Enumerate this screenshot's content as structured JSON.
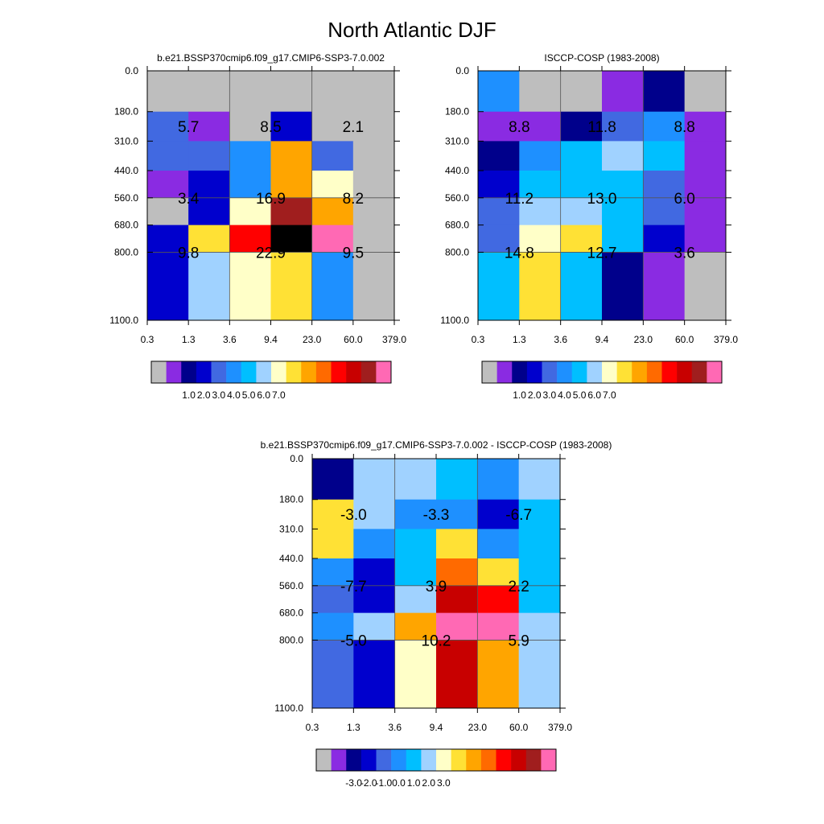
{
  "title": "North Atlantic DJF",
  "y_tick_labels": [
    "0.0",
    "180.0",
    "310.0",
    "440.0",
    "560.0",
    "680.0",
    "800.0",
    "1100.0"
  ],
  "x_tick_labels": [
    "0.3",
    "1.3",
    "3.6",
    "9.4",
    "23.0",
    "60.0",
    "379.0"
  ],
  "chart_data": [
    {
      "type": "heatmap",
      "title": "b.e21.BSSP370cmip6.f09_g17.CMIP6-SSP3-7.0.002",
      "x_bins": [
        "0.3",
        "1.3",
        "3.6",
        "9.4",
        "23.0",
        "60.0",
        "379.0"
      ],
      "y_bins": [
        "0.0",
        "180.0",
        "310.0",
        "440.0",
        "560.0",
        "680.0",
        "800.0",
        "1100.0"
      ],
      "cells": [
        [
          0,
          0,
          0,
          0,
          0,
          0
        ],
        [
          4,
          1,
          0,
          3,
          0,
          0
        ],
        [
          4,
          4,
          5,
          10,
          4,
          0
        ],
        [
          1,
          3,
          5,
          10,
          8,
          0
        ],
        [
          0,
          3,
          8,
          14,
          10,
          0
        ],
        [
          3,
          9,
          12,
          16,
          15,
          0
        ],
        [
          3,
          7,
          8,
          9,
          5,
          0
        ]
      ],
      "block_labels": [
        {
          "row": 0,
          "col": 0,
          "text": "5.7"
        },
        {
          "row": 0,
          "col": 1,
          "text": "8.5"
        },
        {
          "row": 0,
          "col": 2,
          "text": "2.1"
        },
        {
          "row": 1,
          "col": 0,
          "text": "3.4"
        },
        {
          "row": 1,
          "col": 1,
          "text": "16.9"
        },
        {
          "row": 1,
          "col": 2,
          "text": "8.2"
        },
        {
          "row": 2,
          "col": 0,
          "text": "9.8"
        },
        {
          "row": 2,
          "col": 1,
          "text": "22.9"
        },
        {
          "row": 2,
          "col": 2,
          "text": "9.5"
        }
      ],
      "colorbar": {
        "colors": [
          "#bebebe",
          "#8a2be2",
          "#00008b",
          "#0000cd",
          "#4169e1",
          "#1e90ff",
          "#00bfff",
          "#a0d2ff",
          "#ffffc8",
          "#ffe135",
          "#ffa500",
          "#ff6a00",
          "#ff0000",
          "#c80000",
          "#a01e1e",
          "#ff69b4"
        ],
        "labels": [
          "1.0",
          "2.0",
          "3.0",
          "4.0",
          "5.0",
          "6.0",
          "7.0"
        ],
        "label_positions": [
          2,
          3,
          4,
          5,
          6,
          7,
          8
        ]
      }
    },
    {
      "type": "heatmap",
      "title": "ISCCP-COSP (1983-2008)",
      "x_bins": [
        "0.3",
        "1.3",
        "3.6",
        "9.4",
        "23.0",
        "60.0",
        "379.0"
      ],
      "y_bins": [
        "0.0",
        "180.0",
        "310.0",
        "440.0",
        "560.0",
        "680.0",
        "800.0",
        "1100.0"
      ],
      "cells": [
        [
          5,
          0,
          0,
          1,
          2,
          0
        ],
        [
          1,
          1,
          2,
          4,
          5,
          1
        ],
        [
          2,
          5,
          6,
          7,
          6,
          1
        ],
        [
          3,
          6,
          6,
          6,
          4,
          1
        ],
        [
          4,
          7,
          7,
          6,
          4,
          1
        ],
        [
          4,
          8,
          9,
          6,
          3,
          1
        ],
        [
          6,
          9,
          6,
          2,
          1,
          0
        ]
      ],
      "block_labels": [
        {
          "row": 0,
          "col": 0,
          "text": "8.8"
        },
        {
          "row": 0,
          "col": 1,
          "text": "11.8"
        },
        {
          "row": 0,
          "col": 2,
          "text": "8.8"
        },
        {
          "row": 1,
          "col": 0,
          "text": "11.2"
        },
        {
          "row": 1,
          "col": 1,
          "text": "13.0"
        },
        {
          "row": 1,
          "col": 2,
          "text": "6.0"
        },
        {
          "row": 2,
          "col": 0,
          "text": "14.8"
        },
        {
          "row": 2,
          "col": 1,
          "text": "12.7"
        },
        {
          "row": 2,
          "col": 2,
          "text": "3.6"
        }
      ],
      "colorbar": {
        "colors": [
          "#bebebe",
          "#8a2be2",
          "#00008b",
          "#0000cd",
          "#4169e1",
          "#1e90ff",
          "#00bfff",
          "#a0d2ff",
          "#ffffc8",
          "#ffe135",
          "#ffa500",
          "#ff6a00",
          "#ff0000",
          "#c80000",
          "#a01e1e",
          "#ff69b4"
        ],
        "labels": [
          "1.0",
          "2.0",
          "3.0",
          "4.0",
          "5.0",
          "6.0",
          "7.0"
        ],
        "label_positions": [
          2,
          3,
          4,
          5,
          6,
          7,
          8
        ]
      }
    },
    {
      "type": "heatmap",
      "title": "b.e21.BSSP370cmip6.f09_g17.CMIP6-SSP3-7.0.002 - ISCCP-COSP (1983-2008)",
      "x_bins": [
        "0.3",
        "1.3",
        "3.6",
        "9.4",
        "23.0",
        "60.0",
        "379.0"
      ],
      "y_bins": [
        "0.0",
        "180.0",
        "310.0",
        "440.0",
        "560.0",
        "680.0",
        "800.0",
        "1100.0"
      ],
      "cells": [
        [
          2,
          7,
          7,
          6,
          5,
          7
        ],
        [
          9,
          7,
          5,
          5,
          3,
          6
        ],
        [
          9,
          5,
          6,
          9,
          5,
          6
        ],
        [
          5,
          3,
          6,
          11,
          9,
          6
        ],
        [
          4,
          3,
          7,
          13,
          12,
          6
        ],
        [
          5,
          7,
          10,
          15,
          15,
          7
        ],
        [
          4,
          3,
          8,
          13,
          10,
          7
        ]
      ],
      "block_labels": [
        {
          "row": 0,
          "col": 0,
          "text": "-3.0"
        },
        {
          "row": 0,
          "col": 1,
          "text": "-3.3"
        },
        {
          "row": 0,
          "col": 2,
          "text": "-6.7"
        },
        {
          "row": 1,
          "col": 0,
          "text": "-7.7"
        },
        {
          "row": 1,
          "col": 1,
          "text": "3.9"
        },
        {
          "row": 1,
          "col": 2,
          "text": "2.2"
        },
        {
          "row": 2,
          "col": 0,
          "text": "-5.0"
        },
        {
          "row": 2,
          "col": 1,
          "text": "10.2"
        },
        {
          "row": 2,
          "col": 2,
          "text": "5.9"
        }
      ],
      "colorbar": {
        "colors": [
          "#bebebe",
          "#8a2be2",
          "#00008b",
          "#0000cd",
          "#4169e1",
          "#1e90ff",
          "#00bfff",
          "#a0d2ff",
          "#ffffc8",
          "#ffe135",
          "#ffa500",
          "#ff6a00",
          "#ff0000",
          "#c80000",
          "#a01e1e",
          "#ff69b4"
        ],
        "labels": [
          "-3.0",
          "-2.0",
          "-1.0",
          "0.0",
          "1.0",
          "2.0",
          "3.0"
        ],
        "label_positions": [
          2,
          3,
          4,
          5,
          6,
          7,
          8
        ]
      }
    }
  ]
}
